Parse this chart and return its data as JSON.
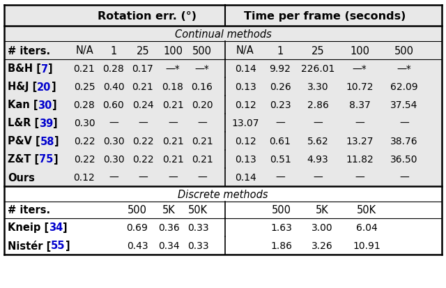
{
  "fig_width": 6.4,
  "fig_height": 4.14,
  "dpi": 100,
  "top_header_rot": "Rotation err. (°)",
  "top_header_time": "Time per frame (seconds)",
  "section_continual": "Continual methods",
  "section_discrete": "Discrete methods",
  "continual_rows": [
    {
      "name": "B&H",
      "ref": "7",
      "rot": [
        "0.21",
        "0.28",
        "0.17",
        "—*",
        "—*"
      ],
      "time": [
        "0.14",
        "9.92",
        "226.01",
        "—*",
        "—*"
      ]
    },
    {
      "name": "H&J",
      "ref": "20",
      "rot": [
        "0.25",
        "0.40",
        "0.21",
        "0.18",
        "0.16"
      ],
      "time": [
        "0.13",
        "0.26",
        "3.30",
        "10.72",
        "62.09"
      ]
    },
    {
      "name": "Kan",
      "ref": "30",
      "rot": [
        "0.28",
        "0.60",
        "0.24",
        "0.21",
        "0.20"
      ],
      "time": [
        "0.12",
        "0.23",
        "2.86",
        "8.37",
        "37.54"
      ]
    },
    {
      "name": "L&R",
      "ref": "39",
      "rot": [
        "0.30",
        "—",
        "—",
        "—",
        "—"
      ],
      "time": [
        "13.07",
        "—",
        "—",
        "—",
        "—"
      ]
    },
    {
      "name": "P&V",
      "ref": "58",
      "rot": [
        "0.22",
        "0.30",
        "0.22",
        "0.21",
        "0.21"
      ],
      "time": [
        "0.12",
        "0.61",
        "5.62",
        "13.27",
        "38.76"
      ]
    },
    {
      "name": "Z&T",
      "ref": "75",
      "rot": [
        "0.22",
        "0.30",
        "0.22",
        "0.21",
        "0.21"
      ],
      "time": [
        "0.13",
        "0.51",
        "4.93",
        "11.82",
        "36.50"
      ]
    },
    {
      "name": "Ours",
      "ref": null,
      "rot": [
        "0.12",
        "—",
        "—",
        "—",
        "—"
      ],
      "time": [
        "0.14",
        "—",
        "—",
        "—",
        "—"
      ]
    }
  ],
  "discrete_rows": [
    {
      "name": "Kneip",
      "ref": "34",
      "rot": [
        "0.69",
        "0.36",
        "0.33"
      ],
      "time": [
        "1.63",
        "3.00",
        "6.04"
      ]
    },
    {
      "name": "Nistér",
      "ref": "55",
      "rot": [
        "0.43",
        "0.34",
        "0.33"
      ],
      "time": [
        "1.86",
        "3.26",
        "10.91"
      ]
    }
  ],
  "ref_color": "#0000cd",
  "gray_bg": "#e8e8e8",
  "white_bg": "#ffffff",
  "text_color": "#000000"
}
